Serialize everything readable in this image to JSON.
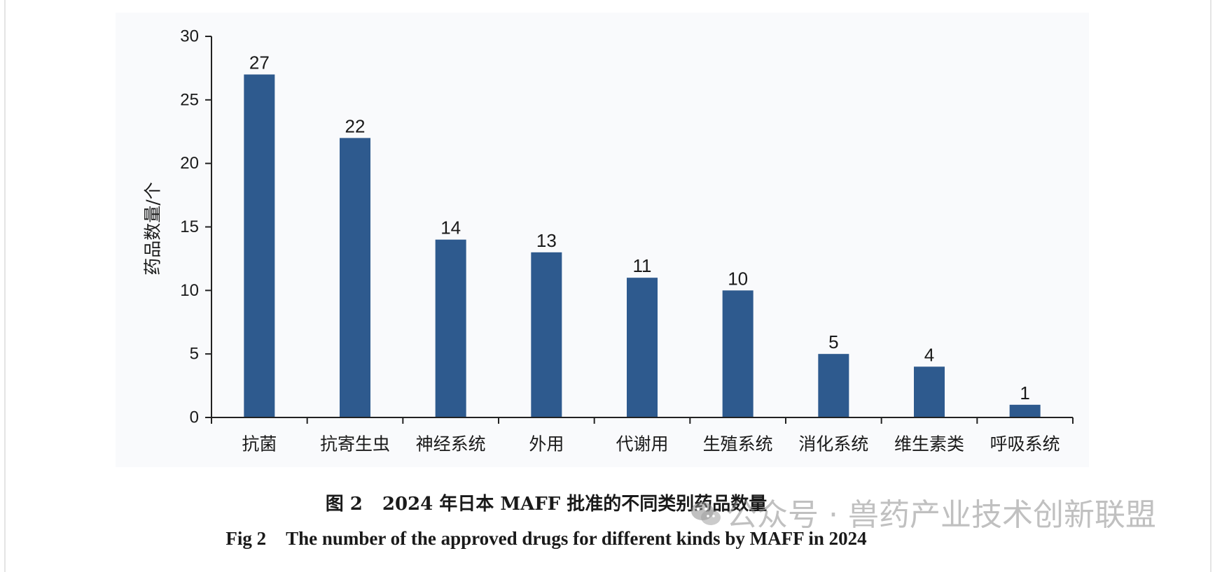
{
  "chart_data": {
    "type": "bar",
    "categories": [
      "抗菌",
      "抗寄生虫",
      "神经系统",
      "外用",
      "代谢用",
      "生殖系统",
      "消化系统",
      "维生素类",
      "呼吸系统"
    ],
    "values": [
      27,
      22,
      14,
      13,
      11,
      10,
      5,
      4,
      1
    ],
    "ylabel": "药品数量/个",
    "ylim": [
      0,
      30
    ],
    "yticks": [
      "0",
      "5",
      "10",
      "15",
      "20",
      "25",
      "30"
    ],
    "data_labels": [
      "27",
      "22",
      "14",
      "13",
      "11",
      "10",
      "5",
      "4",
      "1"
    ],
    "bar_color": "#2e5a8e",
    "grid": false
  },
  "caption": {
    "cn_number": "图 2",
    "cn_text": "2024 年日本 MAFF 批准的不同类别药品数量",
    "en_number": "Fig 2",
    "en_text": "The number of the approved drugs for different kinds by MAFF in 2024"
  },
  "watermark": {
    "icon": "wechat-icon",
    "text": "公众号 · 兽药产业技术创新联盟"
  }
}
